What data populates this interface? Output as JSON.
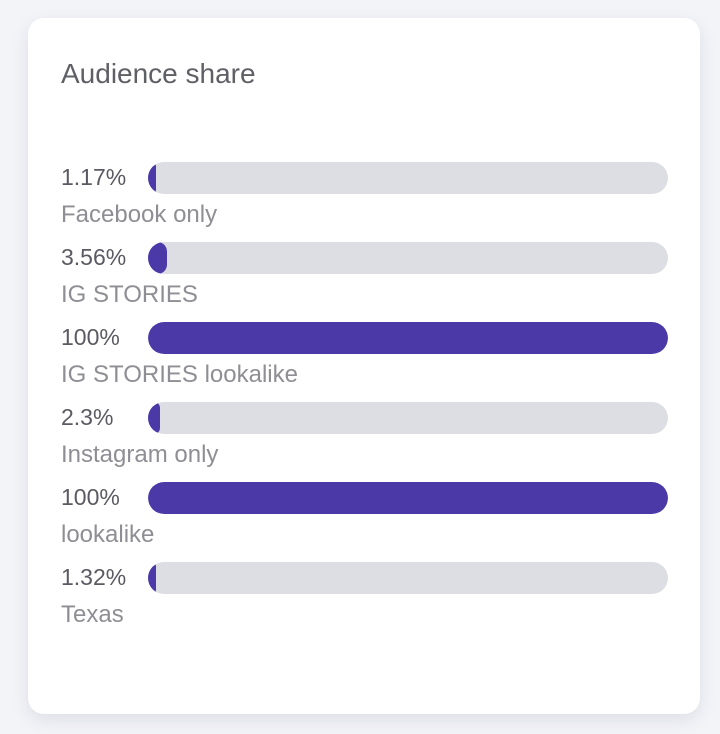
{
  "card": {
    "title": "Audience share"
  },
  "colors": {
    "bar_fill": "#4b39a8",
    "bar_track": "#dddde4"
  },
  "rows": [
    {
      "percent_label": "1.17%",
      "label": "Facebook only",
      "value": 1.17
    },
    {
      "percent_label": "3.56%",
      "label": "IG STORIES",
      "value": 3.56
    },
    {
      "percent_label": "100%",
      "label": "IG STORIES lookalike",
      "value": 100
    },
    {
      "percent_label": "2.3%",
      "label": "Instagram only",
      "value": 2.3
    },
    {
      "percent_label": "100%",
      "label": "lookalike",
      "value": 100
    },
    {
      "percent_label": "1.32%",
      "label": "Texas",
      "value": 1.32
    }
  ]
}
